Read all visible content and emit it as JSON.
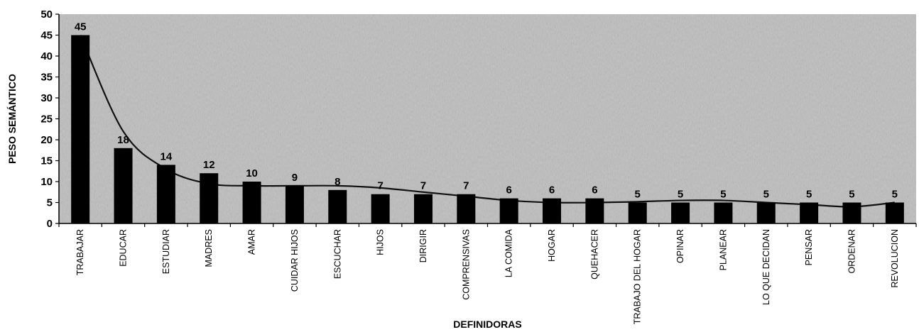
{
  "chart_data": {
    "type": "bar",
    "title": "",
    "xlabel": "DEFINIDORAS",
    "ylabel": "PESO SEMÁNTICO",
    "ylim": [
      0,
      50
    ],
    "yticks": [
      0,
      5,
      10,
      15,
      20,
      25,
      30,
      35,
      40,
      45,
      50
    ],
    "grid": false,
    "legend": "none",
    "categories": [
      "TRABAJAR",
      "EDUCAR",
      "ESTUDIAR",
      "MADRES",
      "AMAR",
      "CUIDAR HIJOS",
      "ESCUCHAR",
      "HIJOS",
      "DIRIGIR",
      "COMPRENSIVAS",
      "LA COMIDA",
      "HOGAR",
      "QUEHACER",
      "TRABAJO DEL HOGAR",
      "OPINAR",
      "PLANEAR",
      "LO QUE DECIDAN",
      "PENSAR",
      "ORDENAR",
      "REVOLUCION"
    ],
    "values": [
      45,
      18,
      14,
      12,
      10,
      9,
      8,
      7,
      7,
      7,
      6,
      6,
      6,
      5,
      5,
      5,
      5,
      5,
      5,
      5
    ],
    "trendline": {
      "type": "smooth",
      "values": [
        45,
        22,
        13,
        9.5,
        9,
        9,
        9,
        8.5,
        7.5,
        6.5,
        5.5,
        5,
        5,
        5.2,
        5.5,
        5.5,
        5,
        4.5,
        4,
        5
      ]
    },
    "colors": {
      "bar": "#000000",
      "trendline": "#111111",
      "plot_background": "#bdbdbd"
    }
  }
}
